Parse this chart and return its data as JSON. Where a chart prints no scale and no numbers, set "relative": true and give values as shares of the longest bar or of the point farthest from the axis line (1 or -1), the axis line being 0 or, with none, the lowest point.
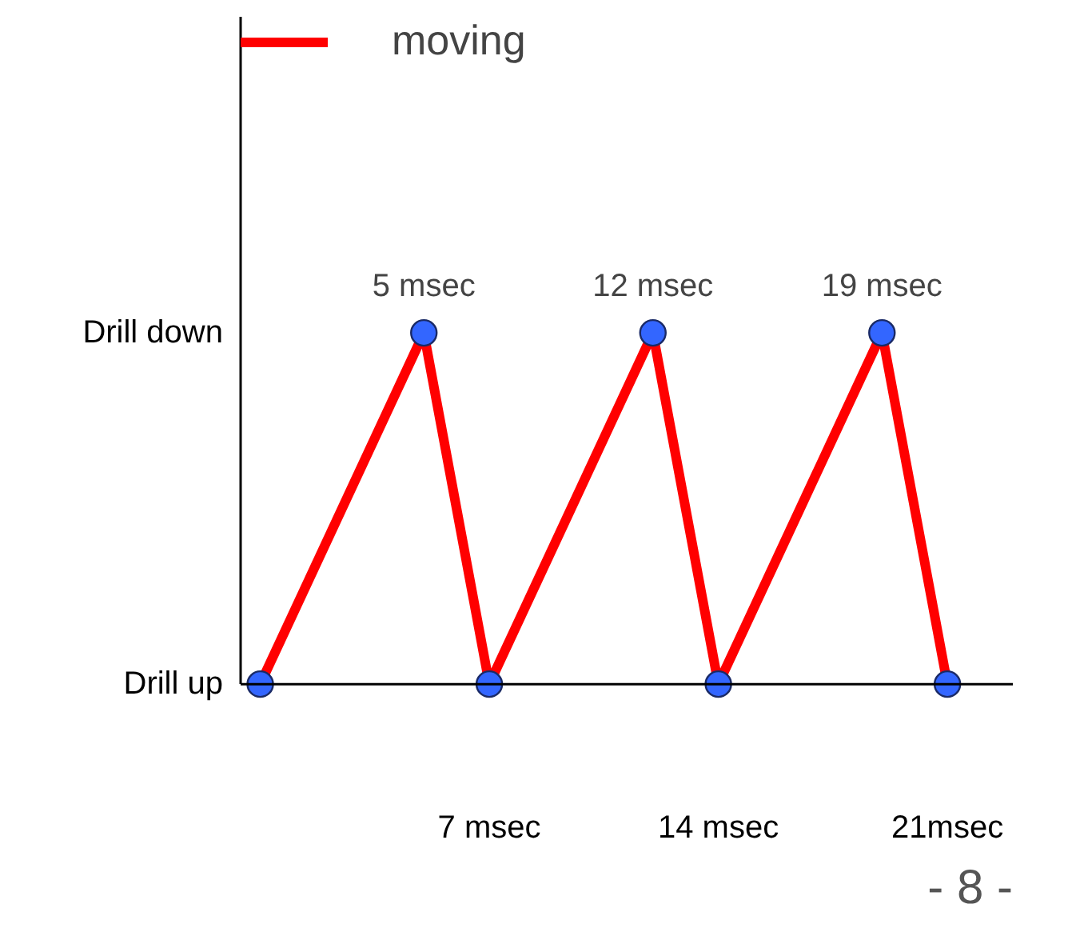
{
  "chart_data": {
    "type": "line",
    "x": [
      0,
      5,
      7,
      12,
      14,
      19,
      21
    ],
    "series": [
      {
        "name": "moving",
        "color": "#ff0000",
        "values": [
          0,
          1,
          0,
          1,
          0,
          1,
          0
        ],
        "marker": "none"
      },
      {
        "type": "scatter",
        "color": "#3366ff",
        "values": [
          0,
          1,
          0,
          1,
          0,
          1,
          0
        ],
        "marker": "circle"
      }
    ],
    "xlim": [
      -0.6,
      23
    ],
    "relative": true,
    "xticks": [
      {
        "value": 7,
        "label": "7 msec"
      },
      {
        "value": 14,
        "label": "14 msec"
      },
      {
        "value": 21,
        "label": "21msec"
      }
    ],
    "grid": false,
    "legend": "top left",
    "annotations": [
      "Drill up",
      "Drill down",
      {
        "text": "5 msec",
        "x": 5,
        "y": 1
      },
      {
        "text": "12 msec",
        "x": 12,
        "y": 1
      },
      {
        "text": "19 msec",
        "x": 19,
        "y": 1
      },
      "- 8 -"
    ]
  }
}
